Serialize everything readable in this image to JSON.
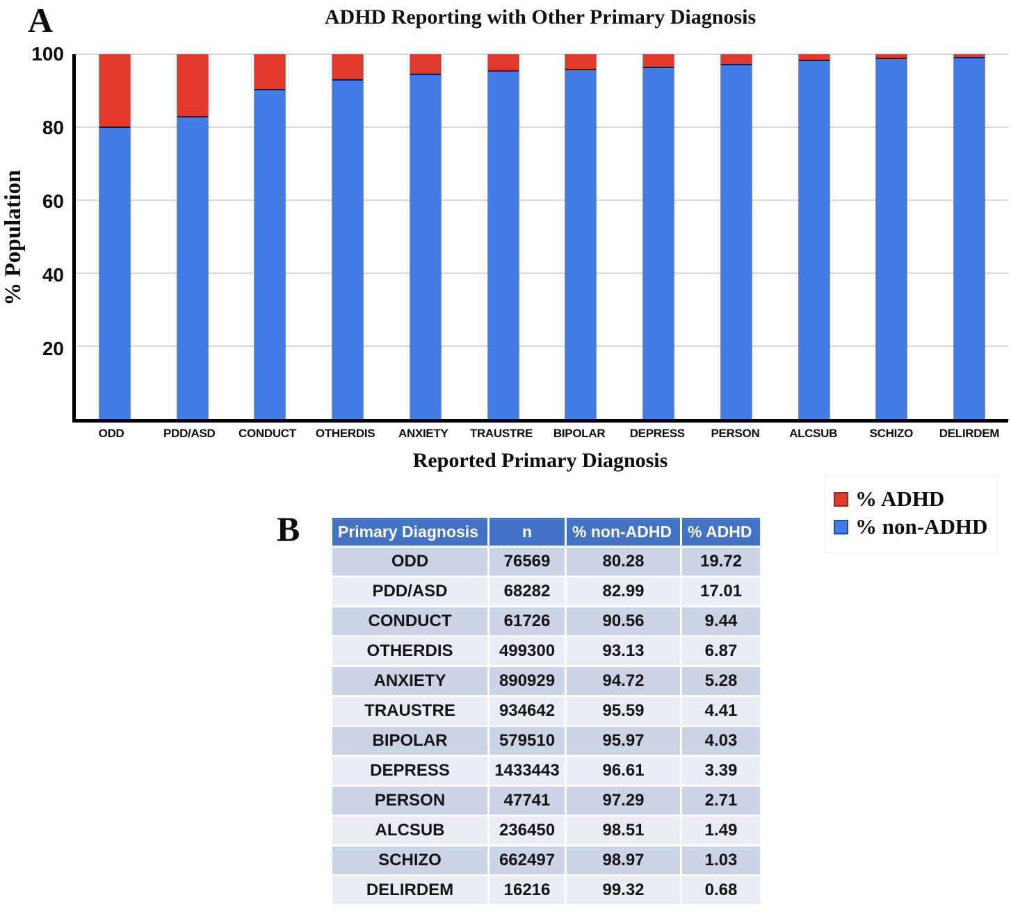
{
  "panel_a": {
    "label": "A",
    "title": "ADHD Reporting with Other Primary Diagnosis",
    "ylabel": "% Population",
    "xlabel": "Reported Primary Diagnosis"
  },
  "chart_data": {
    "type": "bar",
    "stacked": true,
    "title": "ADHD Reporting with Other Primary Diagnosis",
    "xlabel": "Reported Primary Diagnosis",
    "ylabel": "% Population",
    "ylim": [
      0,
      100
    ],
    "yticks": [
      20,
      40,
      60,
      80,
      100
    ],
    "grid": true,
    "legend_position": "below-right",
    "categories": [
      "ODD",
      "PDD/ASD",
      "CONDUCT",
      "OTHERDIS",
      "ANXIETY",
      "TRAUSTRE",
      "BIPOLAR",
      "DEPRESS",
      "PERSON",
      "ALCSUB",
      "SCHIZO",
      "DELIRDEM"
    ],
    "series": [
      {
        "name": "% non-ADHD",
        "color": "#427CE6",
        "values": [
          80.28,
          82.99,
          90.56,
          93.13,
          94.72,
          95.59,
          95.97,
          96.61,
          97.29,
          98.51,
          98.97,
          99.32
        ]
      },
      {
        "name": "% ADHD",
        "color": "#E1392B",
        "values": [
          19.72,
          17.01,
          9.44,
          6.87,
          5.28,
          4.41,
          4.03,
          3.39,
          2.71,
          1.49,
          1.03,
          0.68
        ]
      }
    ]
  },
  "legend": {
    "items": [
      {
        "label": "% ADHD",
        "color": "#E1392B",
        "border": "#9C2B1F"
      },
      {
        "label": "% non-ADHD",
        "color": "#427CE6",
        "border": "#1F4E9C"
      }
    ]
  },
  "panel_b": {
    "label": "B",
    "columns": [
      "Primary Diagnosis",
      "n",
      "% non-ADHD",
      "% ADHD"
    ],
    "rows": [
      [
        "ODD",
        "76569",
        "80.28",
        "19.72"
      ],
      [
        "PDD/ASD",
        "68282",
        "82.99",
        "17.01"
      ],
      [
        "CONDUCT",
        "61726",
        "90.56",
        "9.44"
      ],
      [
        "OTHERDIS",
        "499300",
        "93.13",
        "6.87"
      ],
      [
        "ANXIETY",
        "890929",
        "94.72",
        "5.28"
      ],
      [
        "TRAUSTRE",
        "934642",
        "95.59",
        "4.41"
      ],
      [
        "BIPOLAR",
        "579510",
        "95.97",
        "4.03"
      ],
      [
        "DEPRESS",
        "1433443",
        "96.61",
        "3.39"
      ],
      [
        "PERSON",
        "47741",
        "97.29",
        "2.71"
      ],
      [
        "ALCSUB",
        "236450",
        "98.51",
        "1.49"
      ],
      [
        "SCHIZO",
        "662497",
        "98.97",
        "1.03"
      ],
      [
        "DELIRDEM",
        "16216",
        "99.32",
        "0.68"
      ]
    ],
    "colors": {
      "header_bg": "#4472C4",
      "row_dark": "#CDD3E6",
      "row_light": "#E9EBF5"
    }
  }
}
